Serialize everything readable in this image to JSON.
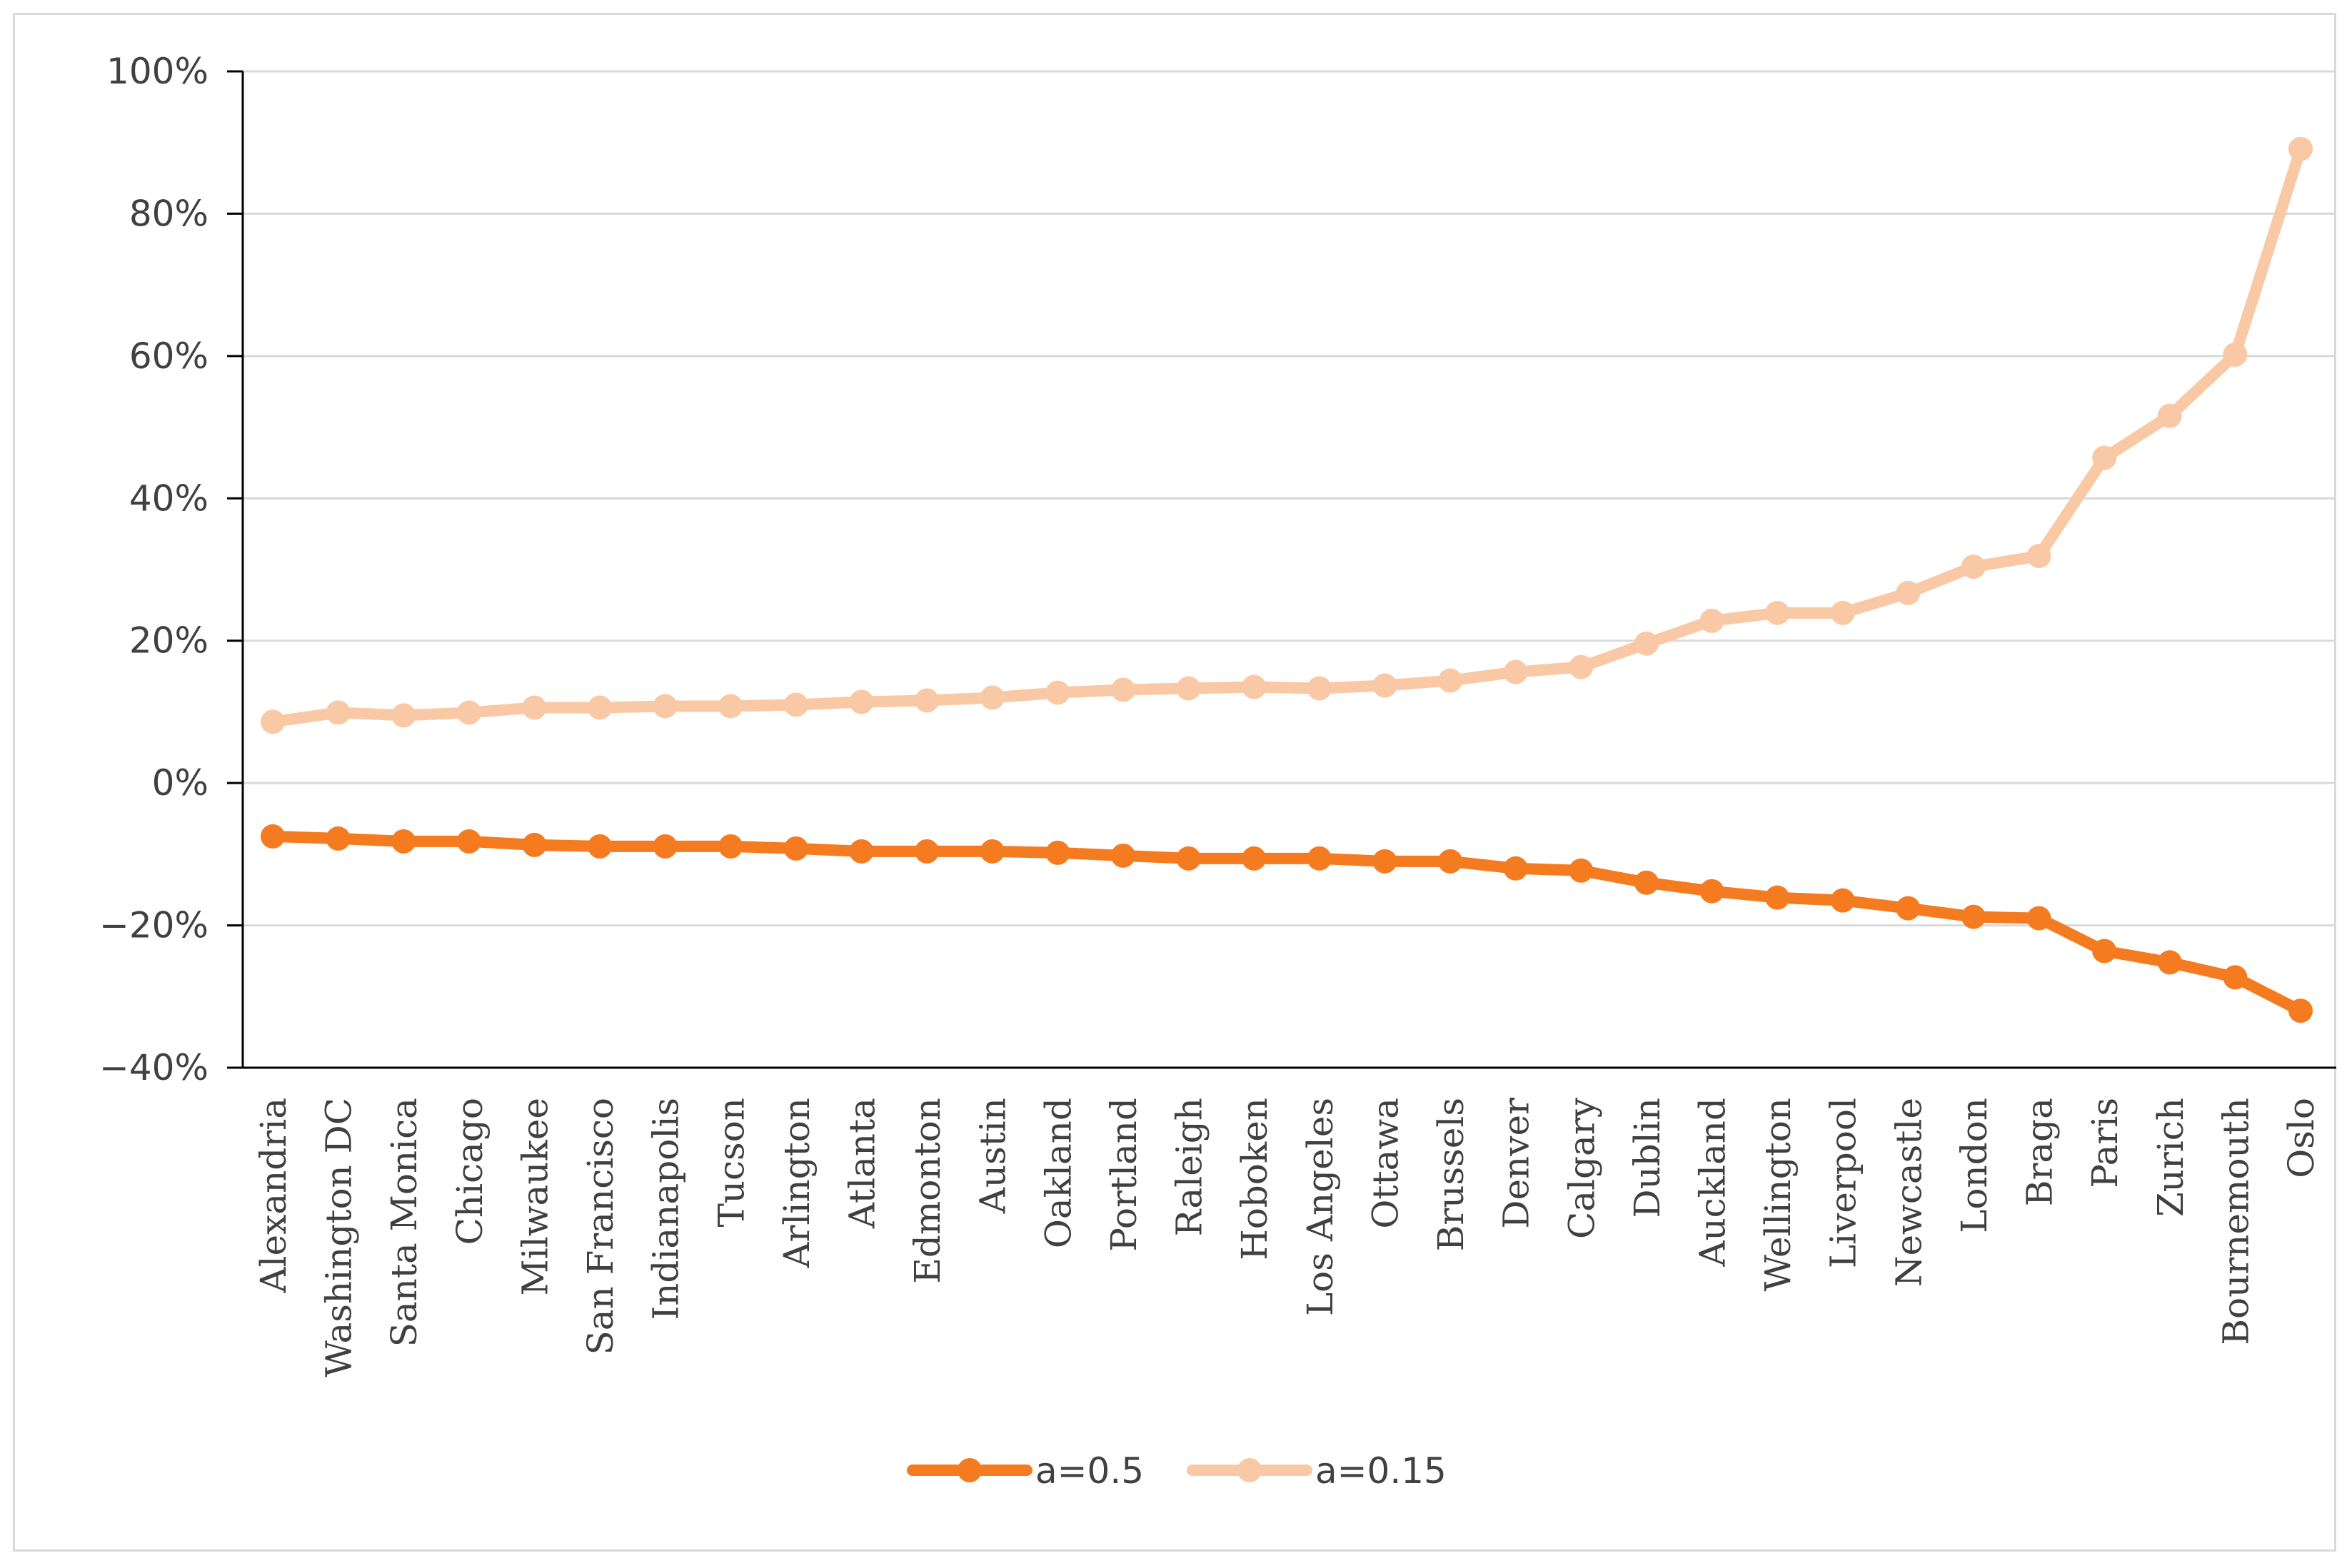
{
  "chart_data": {
    "type": "line",
    "title": "",
    "xlabel": "",
    "ylabel": "",
    "y_axis": {
      "min": -40,
      "max": 100,
      "step": 20,
      "unit": "%",
      "tick_labels": [
        "100%",
        "80%",
        "60%",
        "40%",
        "20%",
        "0%",
        "−20%",
        "−40%"
      ]
    },
    "grid": "horizontal",
    "legend_position": "bottom",
    "categories": [
      "Alexandria",
      "Washington DC",
      "Santa Monica",
      "Chicago",
      "Milwaukee",
      "San Francisco",
      "Indianapolis",
      "Tucson",
      "Arlington",
      "Atlanta",
      "Edmonton",
      "Austin",
      "Oakland",
      "Portland",
      "Raleigh",
      "Hoboken",
      "Los Angeles",
      "Ottawa",
      "Brussels",
      "Denver",
      "Calgary",
      "Dublin",
      "Auckland",
      "Wellington",
      "Liverpool",
      "Newcastle",
      "London",
      "Braga",
      "Paris",
      "Zurich",
      "Bournemouth",
      "Oslo"
    ],
    "series": [
      {
        "name": "a=0.5",
        "color": "#f47b20",
        "values": [
          -7.5,
          -7.8,
          -8.2,
          -8.2,
          -8.7,
          -8.9,
          -8.9,
          -8.9,
          -9.2,
          -9.6,
          -9.6,
          -9.6,
          -9.8,
          -10.2,
          -10.6,
          -10.6,
          -10.6,
          -11.0,
          -11.0,
          -12.0,
          -12.3,
          -14.0,
          -15.2,
          -16.1,
          -16.5,
          -17.6,
          -18.8,
          -19.0,
          -23.6,
          -25.2,
          -27.3,
          -32.0
        ]
      },
      {
        "name": "a=0.15",
        "color": "#f9c9a5",
        "values": [
          8.6,
          9.9,
          9.5,
          9.9,
          10.6,
          10.6,
          10.8,
          10.8,
          11.0,
          11.4,
          11.6,
          12.0,
          12.7,
          13.1,
          13.3,
          13.5,
          13.3,
          13.7,
          14.4,
          15.6,
          16.3,
          19.6,
          22.8,
          23.9,
          23.9,
          26.7,
          30.4,
          31.9,
          45.7,
          51.6,
          60.2,
          89.1
        ]
      }
    ]
  }
}
